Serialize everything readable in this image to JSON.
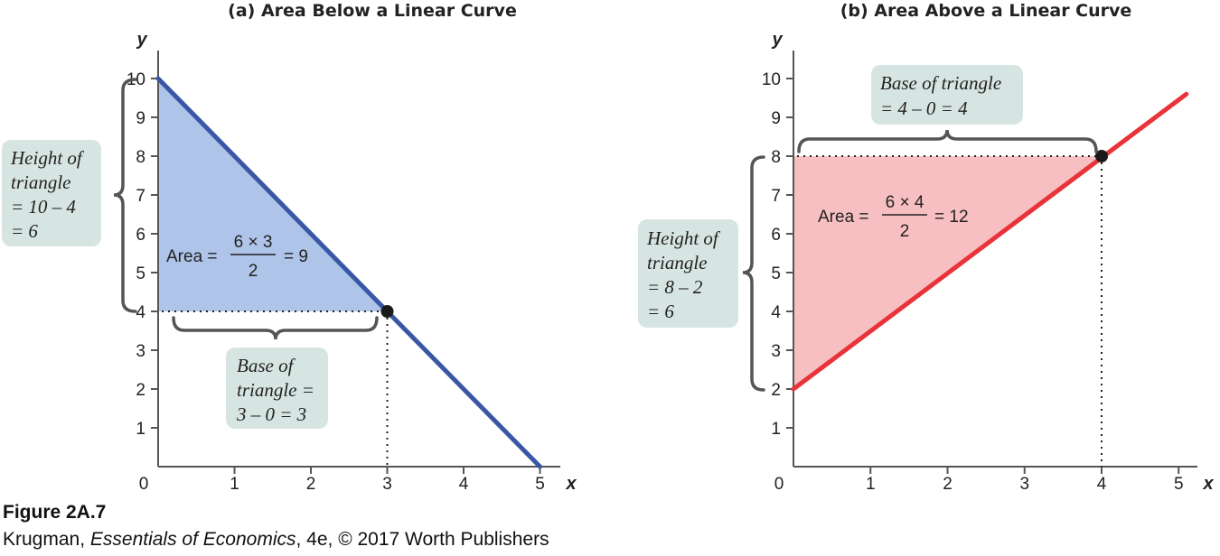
{
  "chart_data": [
    {
      "type": "line",
      "title": "(a) Area Below a Linear Curve",
      "xlabel": "x",
      "ylabel": "y",
      "xlim": [
        0,
        5
      ],
      "ylim": [
        0,
        10
      ],
      "xticks": [
        "1",
        "2",
        "3",
        "4",
        "5"
      ],
      "yticks": [
        "1",
        "2",
        "3",
        "4",
        "5",
        "6",
        "7",
        "8",
        "9",
        "10"
      ],
      "origin_label": "0",
      "line": {
        "x": [
          0,
          5
        ],
        "y": [
          10,
          0
        ],
        "color": "#3a57a6"
      },
      "point": {
        "x": 3,
        "y": 4
      },
      "shaded_triangle": {
        "points": [
          [
            0,
            10
          ],
          [
            0,
            4
          ],
          [
            3,
            4
          ]
        ],
        "color": "#aec4e8"
      },
      "annotations": {
        "height_box": [
          "Height of",
          "triangle",
          "= 10 – 4",
          "= 6"
        ],
        "base_box": [
          "Base of",
          "triangle =",
          "3 – 0 = 3"
        ],
        "area_prefix": "Area =",
        "area_numerator": "6 × 3",
        "area_denominator": "2",
        "area_result": "= 9"
      }
    },
    {
      "type": "line",
      "title": "(b) Area Above a Linear Curve",
      "xlabel": "x",
      "ylabel": "y",
      "xlim": [
        0,
        5
      ],
      "ylim": [
        0,
        10
      ],
      "xticks": [
        "1",
        "2",
        "3",
        "4",
        "5"
      ],
      "yticks": [
        "1",
        "2",
        "3",
        "4",
        "5",
        "6",
        "7",
        "8",
        "9",
        "10"
      ],
      "origin_label": "0",
      "line": {
        "x": [
          0,
          5.1
        ],
        "y": [
          2,
          9.6
        ],
        "color": "#e8333a"
      },
      "point": {
        "x": 4,
        "y": 8
      },
      "shaded_triangle": {
        "points": [
          [
            0,
            8
          ],
          [
            0,
            2
          ],
          [
            4,
            8
          ]
        ],
        "color": "#f8bfc2"
      },
      "annotations": {
        "height_box": [
          "Height of",
          "triangle",
          "= 8 – 2",
          "= 6"
        ],
        "base_box": [
          "Base of triangle",
          "= 4 – 0 = 4"
        ],
        "area_prefix": "Area =",
        "area_numerator": "6 × 4",
        "area_denominator": "2",
        "area_result": "= 12"
      }
    }
  ],
  "figure": {
    "label": "Figure 2A.7",
    "credit_author": "Krugman, ",
    "credit_book": "Essentials of Economics",
    "credit_rest": ", 4e, © 2017 Worth Publishers"
  },
  "colors": {
    "note_box": "#d7e5e2",
    "axis": "#555555"
  }
}
